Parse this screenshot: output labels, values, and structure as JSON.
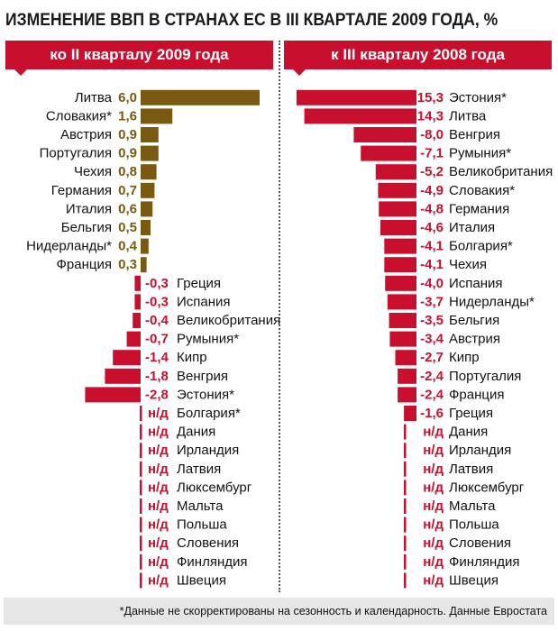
{
  "title": "ИЗМЕНЕНИЕ ВВП В СТРАНАХ ЕС В III КВАРТАЛЕ 2009 ГОДА, %",
  "footnote": "*Данные не скорректированы на сезонность и календарность. Данные Евростата",
  "colors": {
    "positive": "#7a5a10",
    "negative": "#c8102e",
    "band": "#c8102e",
    "nd": "#c8102e"
  },
  "chart_data": [
    {
      "type": "bar",
      "title": "ко II кварталу 2009 года",
      "na_label": "н/д",
      "categories": [
        "Литва",
        "Словакия*",
        "Австрия",
        "Португалия",
        "Чехия",
        "Германия",
        "Италия",
        "Бельгия",
        "Нидерланды*",
        "Франция",
        "Греция",
        "Испания",
        "Великобритания",
        "Румыния*",
        "Кипр",
        "Венгрия",
        "Эстония*",
        "Болгария*",
        "Дания",
        "Ирландия",
        "Латвия",
        "Люксембург",
        "Мальта",
        "Польша",
        "Словения",
        "Финляндия",
        "Швеция"
      ],
      "values": [
        6.0,
        1.6,
        0.9,
        0.9,
        0.8,
        0.7,
        0.6,
        0.5,
        0.4,
        0.3,
        -0.3,
        -0.3,
        -0.4,
        -0.7,
        -1.4,
        -1.8,
        -2.8,
        null,
        null,
        null,
        null,
        null,
        null,
        null,
        null,
        null,
        null
      ],
      "labels": [
        "6,0",
        "1,6",
        "0,9",
        "0,9",
        "0,8",
        "0,7",
        "0,6",
        "0,5",
        "0,4",
        "0,3",
        "-0,3",
        "-0,3",
        "-0,4",
        "-0,7",
        "-1,4",
        "-1,8",
        "-2,8",
        "н/д",
        "н/д",
        "н/д",
        "н/д",
        "н/д",
        "н/д",
        "н/д",
        "н/д",
        "н/д",
        "н/д"
      ]
    },
    {
      "type": "bar",
      "title": "к III кварталу 2008 года",
      "na_label": "н/д",
      "categories": [
        "Эстония*",
        "Литва",
        "Венгрия",
        "Румыния*",
        "Великобритания",
        "Словакия*",
        "Германия",
        "Италия",
        "Болгария*",
        "Чехия",
        "Испания",
        "Нидерланды*",
        "Бельгия",
        "Австрия",
        "Кипр",
        "Португалия",
        "Франция",
        "Греция",
        "Дания",
        "Ирландия",
        "Латвия",
        "Люксембург",
        "Мальта",
        "Польша",
        "Словения",
        "Финляндия",
        "Швеция"
      ],
      "values": [
        -15.3,
        -14.3,
        -8.0,
        -7.1,
        -5.2,
        -4.9,
        -4.8,
        -4.6,
        -4.1,
        -4.1,
        -4.0,
        -3.7,
        -3.5,
        -3.4,
        -2.7,
        -2.4,
        -2.4,
        -1.6,
        null,
        null,
        null,
        null,
        null,
        null,
        null,
        null,
        null
      ],
      "labels": [
        "-15,3",
        "-14,3",
        "-8,0",
        "-7,1",
        "-5,2",
        "-4,9",
        "-4,8",
        "-4,6",
        "-4,1",
        "-4,1",
        "-4,0",
        "-3,7",
        "-3,5",
        "-3,4",
        "-2,7",
        "-2,4",
        "-2,4",
        "-1,6",
        "н/д",
        "н/д",
        "н/д",
        "н/д",
        "н/д",
        "н/д",
        "н/д",
        "н/д",
        "н/д"
      ]
    }
  ]
}
